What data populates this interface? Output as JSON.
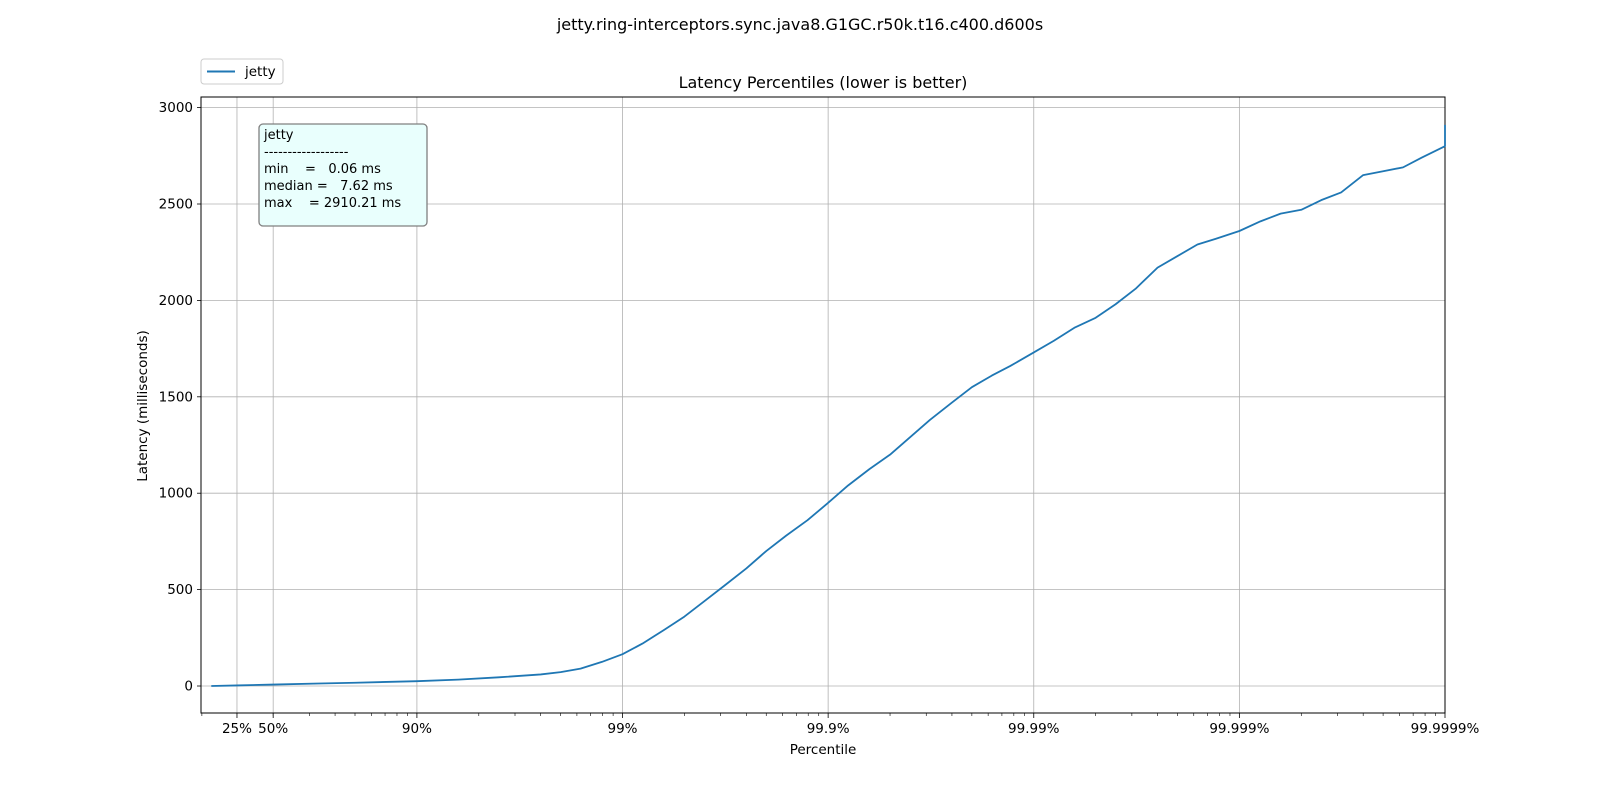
{
  "figure": {
    "suptitle": "jetty.ring-interceptors.sync.java8.G1GC.r50k.t16.c400.d600s"
  },
  "chart_data": {
    "type": "line",
    "title": "Latency Percentiles (lower is better)",
    "xlabel": "Percentile",
    "ylabel": "Latency (milliseconds)",
    "x_scale": "log of 1/(1-percentile)",
    "x_major_ticks": [
      "25%",
      "50%",
      "90%",
      "99%",
      "99.9%",
      "99.99%",
      "99.999%",
      "99.9999%"
    ],
    "x_major_tick_percentiles": [
      25,
      50,
      90,
      99,
      99.9,
      99.99,
      99.999,
      99.9999
    ],
    "xlim_percentile": [
      0,
      99.9999
    ],
    "y_ticks": [
      0,
      500,
      1000,
      1500,
      2000,
      2500,
      3000
    ],
    "ylim": [
      -140,
      3055
    ],
    "grid": true,
    "legend": {
      "position": "top-left",
      "entries": [
        "jetty"
      ]
    },
    "series": [
      {
        "name": "jetty",
        "color": "#1f77b4",
        "points": [
          [
            0,
            0.06
          ],
          [
            25,
            3
          ],
          [
            50,
            7.62
          ],
          [
            70,
            13
          ],
          [
            80,
            17
          ],
          [
            90,
            25
          ],
          [
            93.7,
            33
          ],
          [
            96.0,
            45
          ],
          [
            97.5,
            60
          ],
          [
            98.0,
            72
          ],
          [
            98.4,
            90
          ],
          [
            98.74,
            125
          ],
          [
            99.0,
            165
          ],
          [
            99.2,
            220
          ],
          [
            99.37,
            290
          ],
          [
            99.5,
            360
          ],
          [
            99.6,
            440
          ],
          [
            99.68,
            520
          ],
          [
            99.75,
            610
          ],
          [
            99.8,
            700
          ],
          [
            99.84,
            780
          ],
          [
            99.874,
            860
          ],
          [
            99.9,
            950
          ],
          [
            99.92,
            1040
          ],
          [
            99.937,
            1125
          ],
          [
            99.95,
            1200
          ],
          [
            99.96,
            1290
          ],
          [
            99.968,
            1380
          ],
          [
            99.975,
            1470
          ],
          [
            99.98,
            1550
          ],
          [
            99.984,
            1610
          ],
          [
            99.987,
            1660
          ],
          [
            99.99,
            1730
          ],
          [
            99.992,
            1790
          ],
          [
            99.9937,
            1860
          ],
          [
            99.995,
            1910
          ],
          [
            99.996,
            1980
          ],
          [
            99.9968,
            2060
          ],
          [
            99.9975,
            2170
          ],
          [
            99.998,
            2230
          ],
          [
            99.9984,
            2290
          ],
          [
            99.9987,
            2320
          ],
          [
            99.999,
            2360
          ],
          [
            99.99921,
            2410
          ],
          [
            99.99937,
            2450
          ],
          [
            99.9995,
            2470
          ],
          [
            99.9996,
            2520
          ],
          [
            99.99968,
            2560
          ],
          [
            99.99975,
            2650
          ],
          [
            99.9998,
            2670
          ],
          [
            99.99984,
            2690
          ],
          [
            99.99987,
            2740
          ],
          [
            99.9999,
            2800
          ],
          [
            99.99992,
            2810
          ],
          [
            99.99994,
            2820
          ],
          [
            99.99996,
            2830
          ],
          [
            99.99998,
            2835
          ],
          [
            99.9999,
            2840
          ],
          [
            99.9999,
            2910.21
          ]
        ]
      }
    ],
    "stats_box": {
      "lines": [
        "jetty",
        "------------------",
        "min    =   0.06 ms",
        "median =   7.62 ms",
        "max    = 2910.21 ms"
      ],
      "background": "#e9fffd",
      "border": "#808080"
    }
  }
}
